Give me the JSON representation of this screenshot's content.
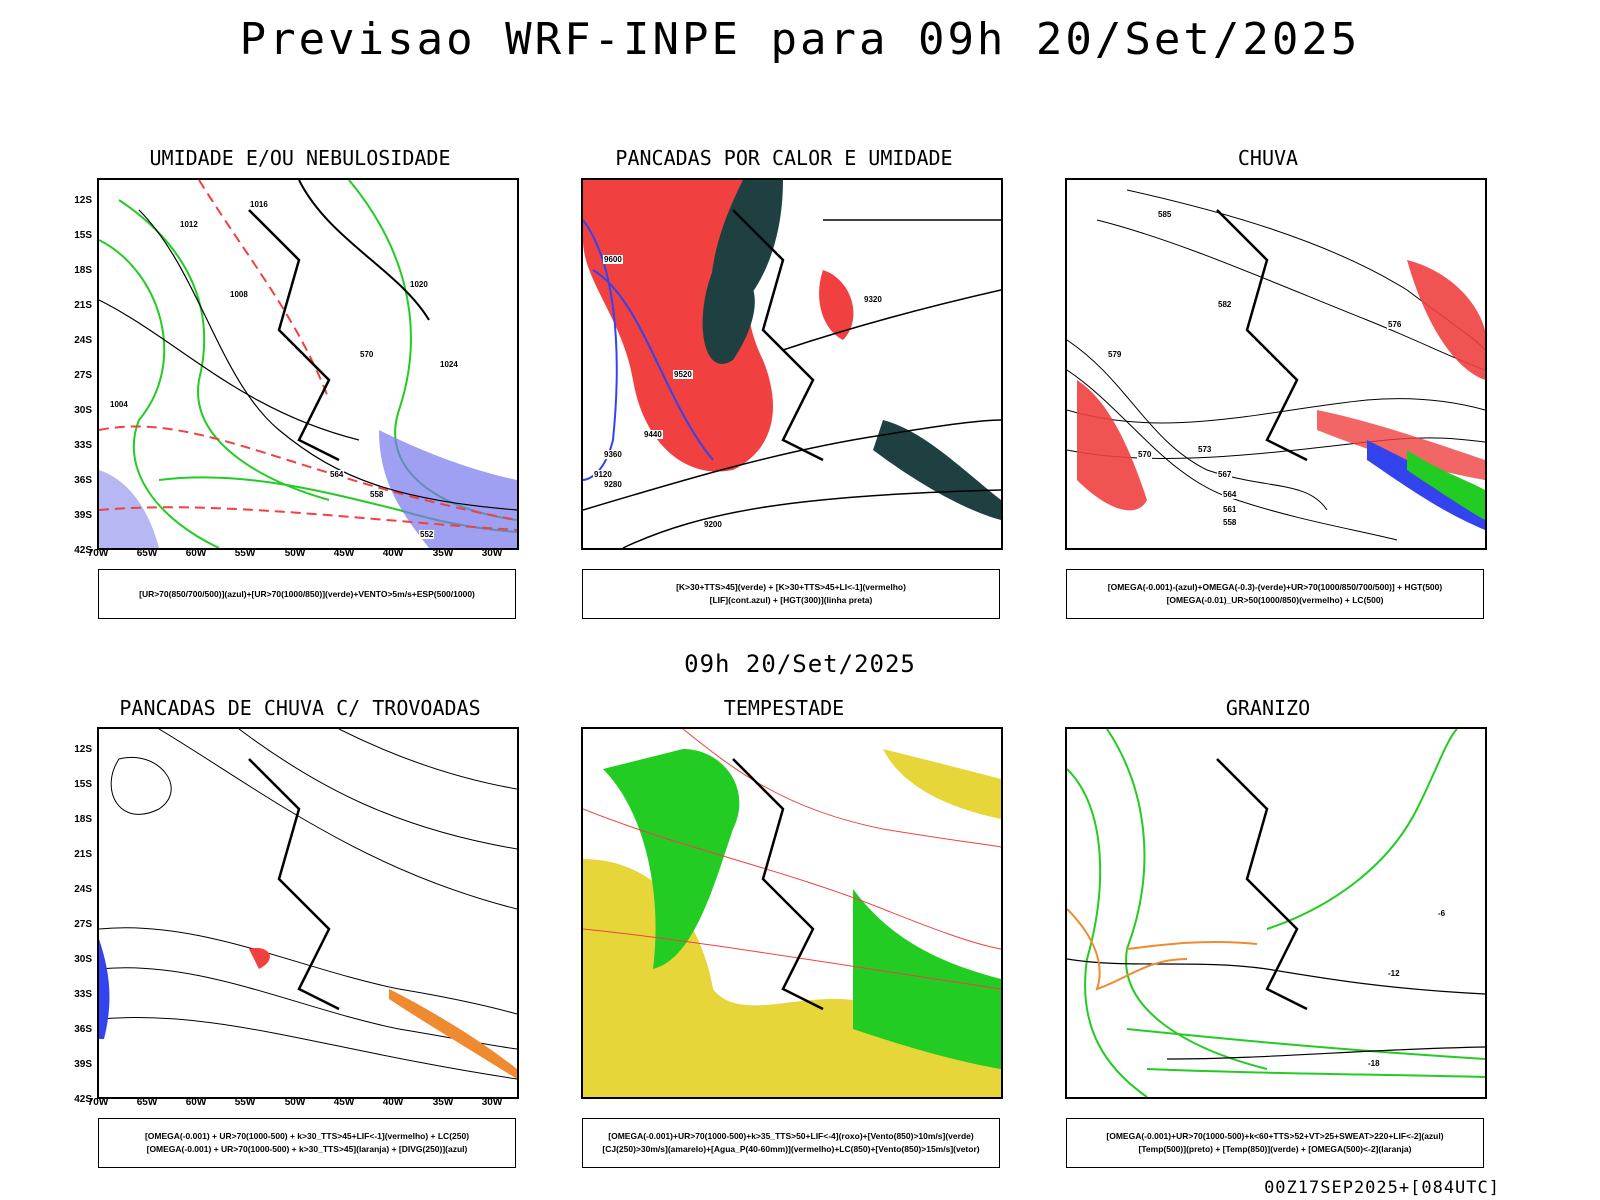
{
  "title": "Previsao WRF-INPE  para 09h 20/Set/2025",
  "subtitle": "09h 20/Set/2025",
  "footer": "00Z17SEP2025+[084UTC]",
  "axes": {
    "lat": [
      "12S",
      "15S",
      "18S",
      "21S",
      "24S",
      "27S",
      "30S",
      "33S",
      "36S",
      "39S",
      "42S"
    ],
    "lon": [
      "70W",
      "65W",
      "60W",
      "55W",
      "50W",
      "45W",
      "40W",
      "35W",
      "30W"
    ]
  },
  "panels": [
    {
      "title": "UMIDADE E/OU NEBULOSIDADE",
      "legend": [
        "[UR>70(850/700/500)](azul)+[UR>70(1000/850)](verde)+VENTO>5m/s+ESP(500/1000)"
      ]
    },
    {
      "title": "PANCADAS POR CALOR E UMIDADE",
      "legend": [
        "[K>30+TTS>45](verde) + [K>30+TTS>45+LI<-1](vermelho)",
        "[LIF](cont.azul) + [HGT(300)](linha preta)"
      ]
    },
    {
      "title": "CHUVA",
      "legend": [
        "[OMEGA(-0.001)-(azul)+OMEGA(-0.3)-(verde)+UR>70(1000/850/700/500)] + HGT(500)",
        "[OMEGA(-0.01)_UR>50(1000/850)(vermelho) + LC(500)"
      ]
    },
    {
      "title": "PANCADAS DE CHUVA C/ TROVOADAS",
      "legend": [
        "[OMEGA(-0.001) + UR>70(1000-500) + k>30_TTS>45+LIF<-1](vermelho) + LC(250)",
        "[OMEGA(-0.001) + UR>70(1000-500) + k>30_TTS>45](laranja) + [DIVG(250)](azul)"
      ]
    },
    {
      "title": "TEMPESTADE",
      "legend": [
        "[OMEGA(-0.001)+UR>70(1000-500)+k>35_TTS>50+LIF<-4](roxo)+[Vento(850)>10m/s](verde)",
        "[CJ(250)>30m/s](amarelo)+[Agua_P(40-60mm)](vermelho)+LC(850)+[Vento(850)>15m/s](vetor)"
      ]
    },
    {
      "title": "GRANIZO",
      "legend": [
        "[OMEGA(-0.001)+UR>70(1000-500)+k<60+TTS>52+VT>25+SWEAT>220+LIF<-2](azul)",
        "[Temp(500)](preto) + [Temp(850)](verde) + [OMEGA(500)<-2](laranja)"
      ]
    }
  ],
  "contour_labels": {
    "p1": [
      "1016",
      "1012",
      "1008",
      "1004",
      "1020",
      "1024",
      "570",
      "564",
      "558",
      "552"
    ],
    "p2": [
      "9600",
      "9520",
      "9440",
      "9360",
      "9280",
      "9200",
      "9120",
      "9320"
    ],
    "p3": [
      "585",
      "582",
      "579",
      "576",
      "573",
      "570",
      "567",
      "564",
      "561",
      "558"
    ],
    "p6": [
      "-18",
      "-12",
      "-6"
    ]
  },
  "colors": {
    "red": "#f04040",
    "green": "#22cc22",
    "blue": "#3344ee",
    "lightblue": "#9999ee",
    "dark": "#1f4040",
    "yellow": "#e6d63a",
    "orange": "#f08a30"
  }
}
